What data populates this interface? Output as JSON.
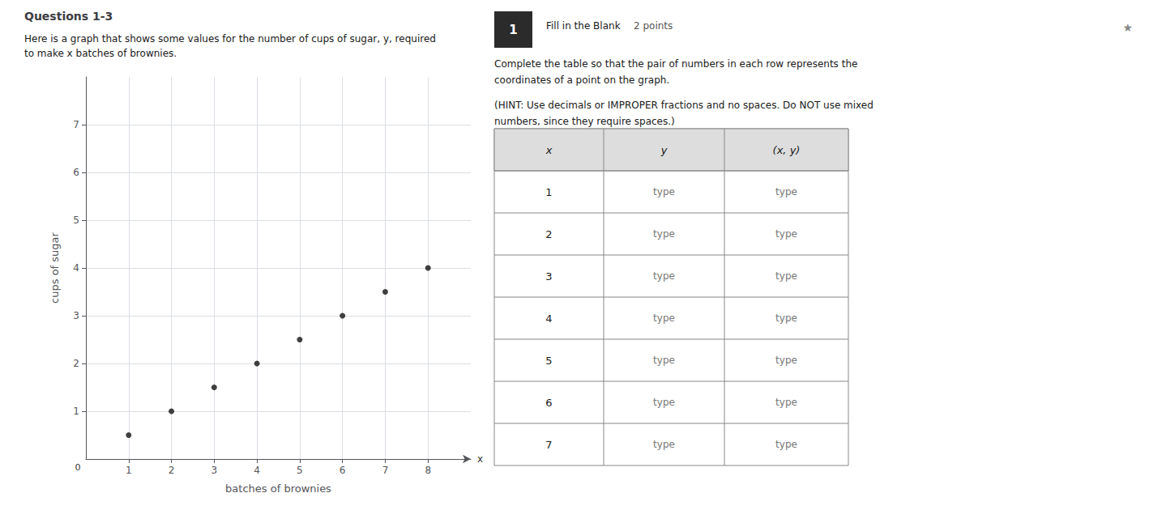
{
  "chart_data": {
    "type": "scatter",
    "title": "Questions 1-3",
    "subtitle": "Here is a graph that shows some values for the number of cups of sugar, y, required\nto make x batches of brownies.",
    "xlabel": "batches of brownies",
    "ylabel": "cups of sugar",
    "x": [
      1,
      2,
      3,
      4,
      5,
      6,
      7,
      8
    ],
    "values": [
      0.5,
      1.0,
      1.5,
      2.0,
      2.5,
      3.0,
      3.5,
      4.0
    ],
    "color": "#111111",
    "xlim": [
      0,
      9
    ],
    "ylim": [
      0,
      8
    ],
    "xticks": [
      1,
      2,
      3,
      4,
      5,
      6,
      7,
      8
    ],
    "yticks": [
      1,
      2,
      3,
      4,
      5,
      6,
      7
    ],
    "grid": true,
    "annotations": [
      "x",
      "0",
      "1",
      "Fill in the Blank",
      "2 points",
      "★",
      "Complete the table so that the pair of numbers in each row represents the\ncoordinates of a point on the graph.",
      "(HINT: Use decimals or IMPROPER fractions and no spaces. Do NOT use mixed\nnumbers, since they require spaces.)"
    ],
    "table": {
      "columns": [
        "x",
        "y",
        "(x, y)"
      ],
      "rows": [
        [
          1,
          "type",
          "type"
        ],
        [
          2,
          "type",
          "type"
        ],
        [
          3,
          "type",
          "type"
        ],
        [
          4,
          "type",
          "type"
        ],
        [
          5,
          "type",
          "type"
        ],
        [
          6,
          "type",
          "type"
        ],
        [
          7,
          "type",
          "type"
        ]
      ]
    }
  }
}
